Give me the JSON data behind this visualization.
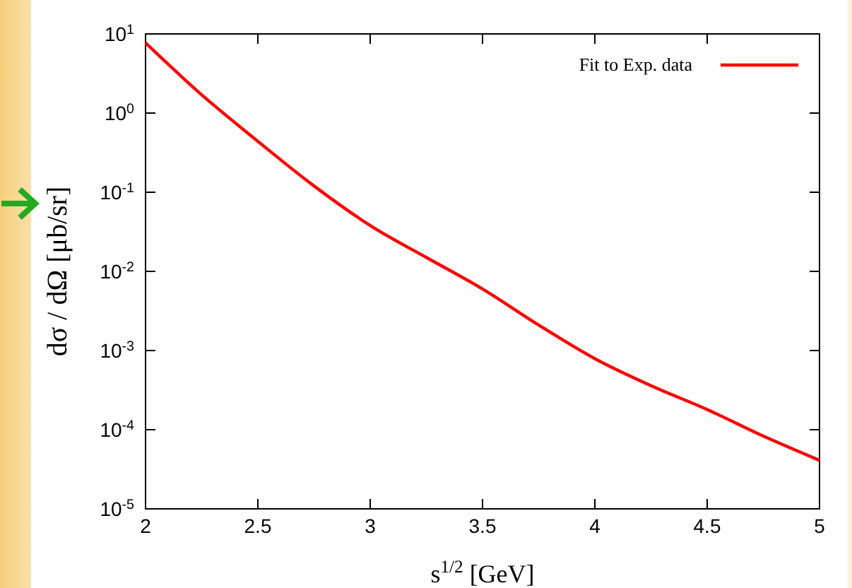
{
  "chart_data": {
    "type": "line",
    "xlabel": "s$^{1/2}$  [GeV]",
    "ylabel": "dσ / dΩ  [μb/sr]",
    "x": [
      2,
      2.25,
      2.5,
      2.75,
      3,
      3.25,
      3.5,
      3.75,
      4,
      4.25,
      4.5,
      4.75,
      5
    ],
    "series": [
      {
        "name": "Fit to Exp. data",
        "color": "#ff0000",
        "values": [
          7.7,
          1.7,
          0.44,
          0.12,
          0.038,
          0.015,
          0.006,
          0.0021,
          0.00079,
          0.00036,
          0.00018,
          8.3e-05,
          4.1e-05
        ]
      }
    ],
    "xlim": [
      2,
      5
    ],
    "xticks": [
      2,
      2.5,
      3,
      3.5,
      4,
      4.5,
      5
    ],
    "ylim": [
      1e-05,
      10
    ],
    "yticks": [
      {
        "value": 1e-05,
        "label": "10$^{-5}$"
      },
      {
        "value": 0.0001,
        "label": "10$^{-4}$"
      },
      {
        "value": 0.001,
        "label": "10$^{-3}$"
      },
      {
        "value": 0.01,
        "label": "10$^{-2}$"
      },
      {
        "value": 0.1,
        "label": "10$^{-1}$"
      },
      {
        "value": 1,
        "label": "10$^{0}$"
      },
      {
        "value": 10,
        "label": "10$^{1}$"
      }
    ],
    "log": "y",
    "legend": "top right",
    "grid": false,
    "marker": "none",
    "line_style": "solid"
  }
}
